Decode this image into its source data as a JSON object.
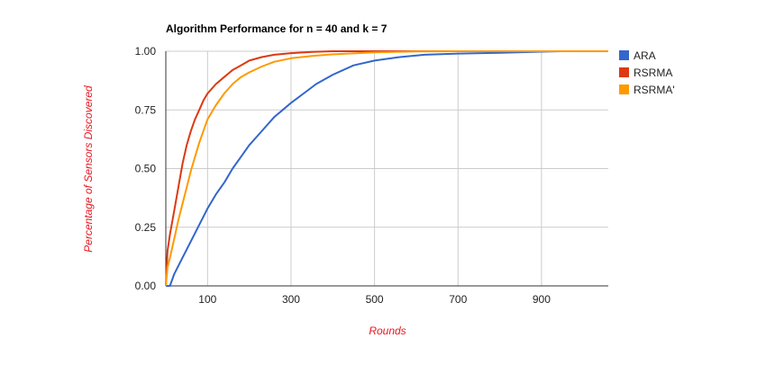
{
  "chart_data": {
    "type": "line",
    "title": "Algorithm Performance for n = 40 and k = 7",
    "xlabel": "Rounds",
    "ylabel": "Percentage of Sensors Discovered",
    "axis_title_color": "#e8171f",
    "xlim": [
      0,
      1060
    ],
    "ylim": [
      0,
      1
    ],
    "x_ticks": [
      100,
      300,
      500,
      700,
      900
    ],
    "x_tick_labels": [
      "100",
      "300",
      "500",
      "700",
      "900"
    ],
    "y_ticks": [
      0,
      0.25,
      0.5,
      0.75,
      1
    ],
    "y_tick_labels": [
      "0.00",
      "0.25",
      "0.50",
      "0.75",
      "1.00"
    ],
    "grid": true,
    "legend_position": "right",
    "series": [
      {
        "name": "ARA",
        "color": "#3366cc",
        "points": [
          [
            0,
            0
          ],
          [
            10,
            0
          ],
          [
            20,
            0.05
          ],
          [
            40,
            0.12
          ],
          [
            60,
            0.19
          ],
          [
            80,
            0.26
          ],
          [
            100,
            0.33
          ],
          [
            120,
            0.39
          ],
          [
            140,
            0.44
          ],
          [
            160,
            0.5
          ],
          [
            180,
            0.55
          ],
          [
            200,
            0.6
          ],
          [
            220,
            0.64
          ],
          [
            240,
            0.68
          ],
          [
            260,
            0.72
          ],
          [
            280,
            0.75
          ],
          [
            300,
            0.78
          ],
          [
            330,
            0.82
          ],
          [
            360,
            0.86
          ],
          [
            400,
            0.9
          ],
          [
            450,
            0.94
          ],
          [
            500,
            0.96
          ],
          [
            560,
            0.975
          ],
          [
            620,
            0.985
          ],
          [
            700,
            0.99
          ],
          [
            800,
            0.993
          ],
          [
            900,
            0.998
          ],
          [
            950,
            1
          ],
          [
            1060,
            1
          ]
        ]
      },
      {
        "name": "RSRMA",
        "color": "#dc3912",
        "points": [
          [
            0,
            0
          ],
          [
            4,
            0.15
          ],
          [
            10,
            0.22
          ],
          [
            20,
            0.32
          ],
          [
            30,
            0.42
          ],
          [
            40,
            0.52
          ],
          [
            50,
            0.6
          ],
          [
            60,
            0.66
          ],
          [
            70,
            0.71
          ],
          [
            80,
            0.75
          ],
          [
            90,
            0.79
          ],
          [
            100,
            0.82
          ],
          [
            120,
            0.86
          ],
          [
            140,
            0.89
          ],
          [
            160,
            0.92
          ],
          [
            180,
            0.94
          ],
          [
            200,
            0.96
          ],
          [
            230,
            0.975
          ],
          [
            260,
            0.985
          ],
          [
            300,
            0.992
          ],
          [
            350,
            0.997
          ],
          [
            400,
            1
          ],
          [
            1060,
            1
          ]
        ]
      },
      {
        "name": "RSRMA'",
        "color": "#ff9900",
        "points": [
          [
            0,
            0
          ],
          [
            4,
            0.08
          ],
          [
            10,
            0.12
          ],
          [
            20,
            0.2
          ],
          [
            30,
            0.28
          ],
          [
            40,
            0.35
          ],
          [
            50,
            0.42
          ],
          [
            60,
            0.49
          ],
          [
            70,
            0.55
          ],
          [
            80,
            0.61
          ],
          [
            90,
            0.66
          ],
          [
            100,
            0.71
          ],
          [
            120,
            0.77
          ],
          [
            140,
            0.82
          ],
          [
            160,
            0.86
          ],
          [
            180,
            0.89
          ],
          [
            200,
            0.91
          ],
          [
            230,
            0.935
          ],
          [
            260,
            0.955
          ],
          [
            300,
            0.97
          ],
          [
            350,
            0.98
          ],
          [
            400,
            0.987
          ],
          [
            500,
            0.995
          ],
          [
            600,
            0.999
          ],
          [
            700,
            1
          ],
          [
            1060,
            1
          ]
        ]
      }
    ]
  }
}
